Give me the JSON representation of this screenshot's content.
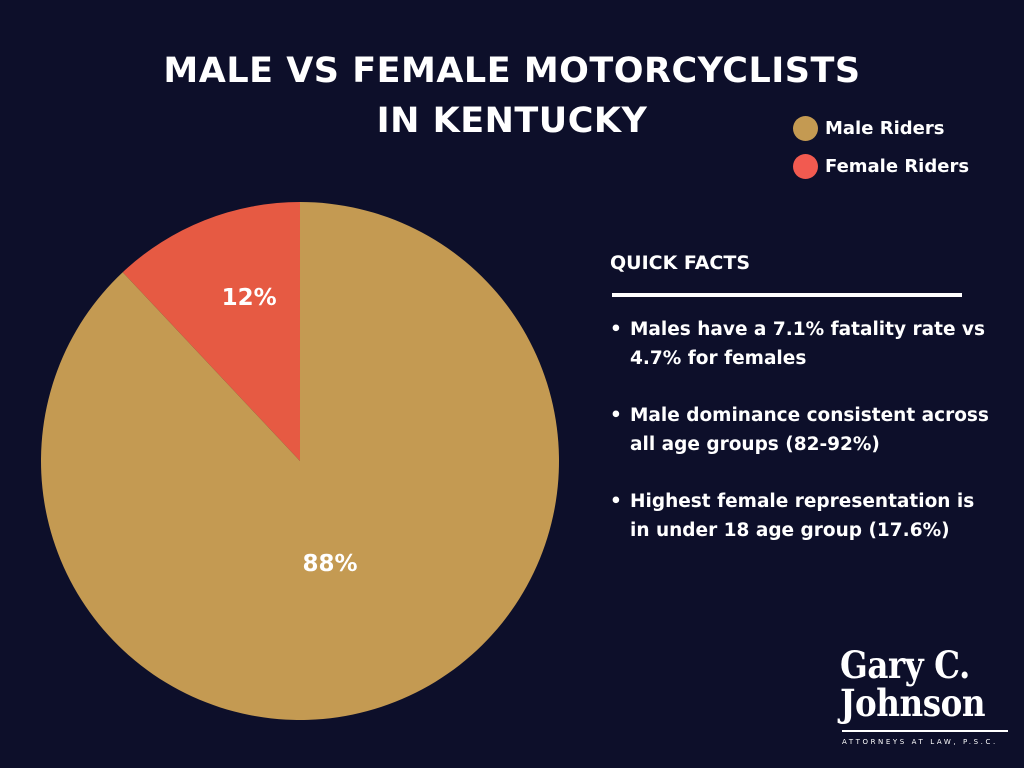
{
  "title": {
    "line1": "MALE VS FEMALE MOTORCYCLISTS",
    "line2": "IN KENTUCKY"
  },
  "legend": [
    {
      "label": "Male Riders",
      "color": "#c49a52"
    },
    {
      "label": "Female Riders",
      "color": "#f25a50"
    }
  ],
  "chart_data": {
    "type": "pie",
    "title": "MALE VS FEMALE MOTORCYCLISTS IN KENTUCKY",
    "slices": [
      {
        "name": "Female Riders",
        "value": 12,
        "label": "12%",
        "color": "#e65a43"
      },
      {
        "name": "Male Riders",
        "value": 88,
        "label": "88%",
        "color": "#c49a52"
      }
    ],
    "legend_position": "top-right"
  },
  "facts": {
    "heading": "QUICK FACTS",
    "bullet": "•",
    "items": [
      "Males have a 7.1% fatality rate vs 4.7% for females",
      "Male dominance consistent across all age groups (82-92%)",
      "Highest female representation is in under 18 age group (17.6%)"
    ]
  },
  "logo": {
    "line1": "Gary C.",
    "line2": "Johnson",
    "tagline": "ATTORNEYS AT LAW, P.S.C."
  }
}
